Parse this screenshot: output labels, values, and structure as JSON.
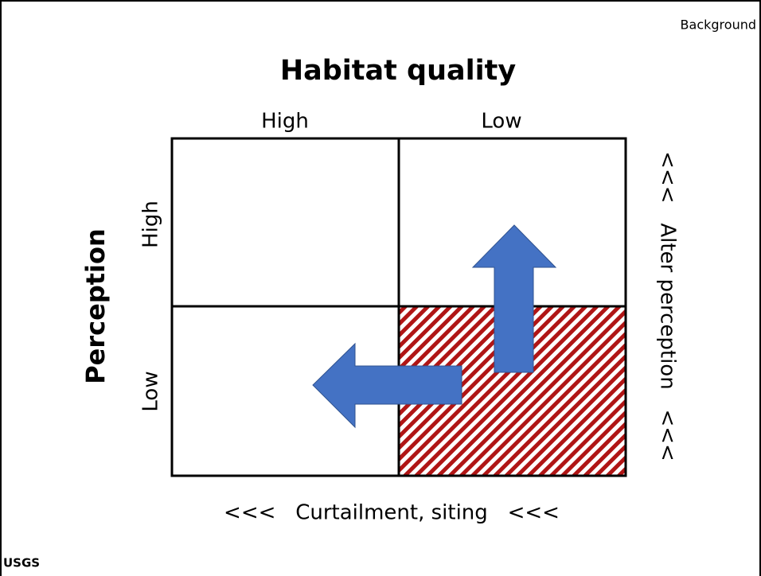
{
  "header": {
    "section": "Background",
    "title": "Habitat quality"
  },
  "columns": {
    "labels": [
      "High",
      "Low"
    ]
  },
  "rows": {
    "axis_title": "Perception",
    "labels": [
      "High",
      "Low"
    ]
  },
  "right_label": "<<<   Alter perception   <<<",
  "bottom_label": "<<<   Curtailment, siting   <<<",
  "logo": "USGS"
}
